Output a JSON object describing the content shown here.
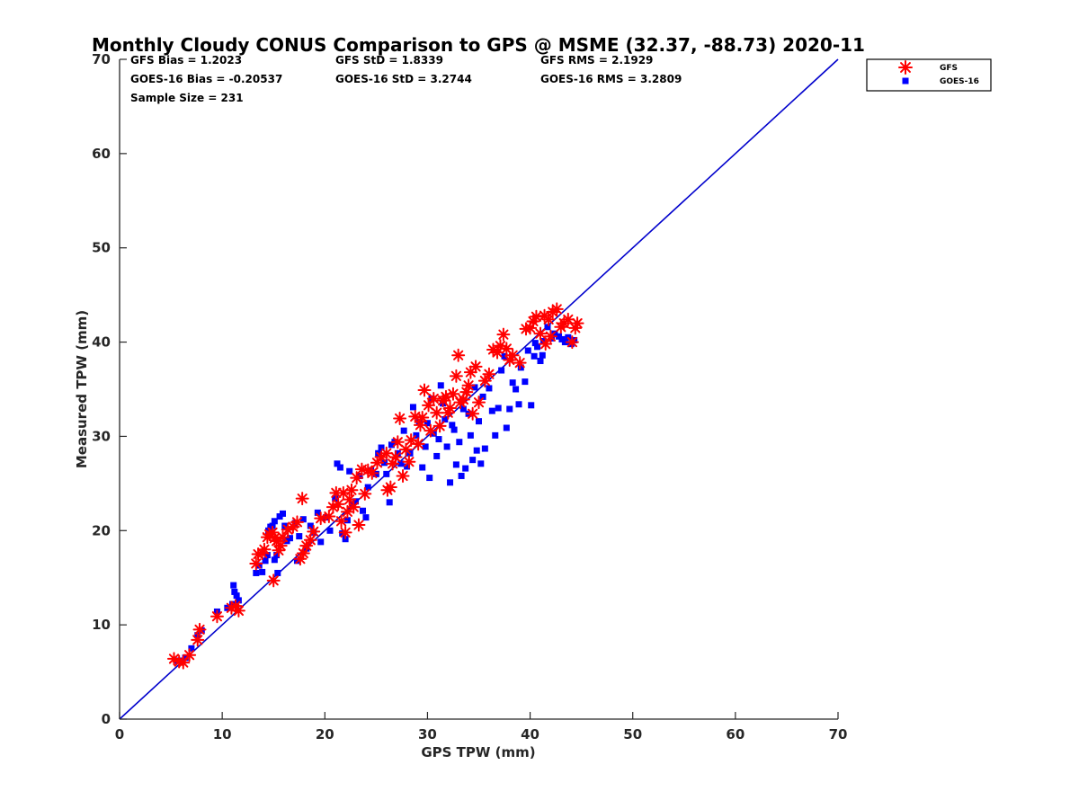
{
  "chart_data": {
    "type": "scatter",
    "title": "Monthly Cloudy CONUS Comparison to GPS @ MSME (32.37, -88.73) 2020-11",
    "xlabel": "GPS TPW (mm)",
    "ylabel": "Measured TPW (mm)",
    "xlim": [
      0,
      70
    ],
    "ylim": [
      0,
      70
    ],
    "xticks": [
      "0",
      "10",
      "20",
      "30",
      "40",
      "50",
      "60",
      "70"
    ],
    "yticks": [
      "0",
      "10",
      "20",
      "30",
      "40",
      "50",
      "60",
      "70"
    ],
    "grid": false,
    "legend_position": "top-right, outside plot area",
    "reference_line": {
      "from": [
        0,
        0
      ],
      "to": [
        70,
        70
      ],
      "color": "#0000CC"
    },
    "stats": {
      "gfs_bias": "GFS Bias = 1.2023",
      "gfs_std": "GFS StD = 1.8339",
      "gfs_rms": "GFS RMS = 2.1929",
      "goes_bias": "GOES-16 Bias = -0.20537",
      "goes_std": "GOES-16 StD = 3.2744",
      "goes_rms": "GOES-16 RMS = 3.2809",
      "sample_size": "Sample Size = 231"
    },
    "series": [
      {
        "name": "GFS",
        "marker": "asterisk",
        "color": "#FF0000",
        "points": [
          [
            5.3,
            6.4
          ],
          [
            5.8,
            6.1
          ],
          [
            6.2,
            6.0
          ],
          [
            6.8,
            6.8
          ],
          [
            7.6,
            8.4
          ],
          [
            7.8,
            9.5
          ],
          [
            9.5,
            10.9
          ],
          [
            10.9,
            11.8
          ],
          [
            11.3,
            12.0
          ],
          [
            11.6,
            11.5
          ],
          [
            13.3,
            16.5
          ],
          [
            13.5,
            17.5
          ],
          [
            13.9,
            17.6
          ],
          [
            14.1,
            18.0
          ],
          [
            14.4,
            19.3
          ],
          [
            14.6,
            19.6
          ],
          [
            14.9,
            19.8
          ],
          [
            15.1,
            19.2
          ],
          [
            15.3,
            18.9
          ],
          [
            15.5,
            17.9
          ],
          [
            15.7,
            18.4
          ],
          [
            15.9,
            19.3
          ],
          [
            15.0,
            14.7
          ],
          [
            16.4,
            20.1
          ],
          [
            16.9,
            20.4
          ],
          [
            17.3,
            20.9
          ],
          [
            17.8,
            23.4
          ],
          [
            17.6,
            17.0
          ],
          [
            17.9,
            17.6
          ],
          [
            18.2,
            18.4
          ],
          [
            18.6,
            19.0
          ],
          [
            18.9,
            19.9
          ],
          [
            19.6,
            21.3
          ],
          [
            20.4,
            21.5
          ],
          [
            20.8,
            22.5
          ],
          [
            21.1,
            24.0
          ],
          [
            21.3,
            22.8
          ],
          [
            21.6,
            21.0
          ],
          [
            21.8,
            24.0
          ],
          [
            22.0,
            19.8
          ],
          [
            22.2,
            22.0
          ],
          [
            22.4,
            23.3
          ],
          [
            22.6,
            24.3
          ],
          [
            22.8,
            22.5
          ],
          [
            23.1,
            25.6
          ],
          [
            23.3,
            20.6
          ],
          [
            23.6,
            26.5
          ],
          [
            23.9,
            23.9
          ],
          [
            24.2,
            26.4
          ],
          [
            24.6,
            26.1
          ],
          [
            25.1,
            27.2
          ],
          [
            25.5,
            27.8
          ],
          [
            26.0,
            28.2
          ],
          [
            26.4,
            24.6
          ],
          [
            26.1,
            24.3
          ],
          [
            26.6,
            27.1
          ],
          [
            26.9,
            27.8
          ],
          [
            27.1,
            29.4
          ],
          [
            27.3,
            31.9
          ],
          [
            27.6,
            25.8
          ],
          [
            27.9,
            28.6
          ],
          [
            28.2,
            27.3
          ],
          [
            28.4,
            29.6
          ],
          [
            28.8,
            32.1
          ],
          [
            29.1,
            29.2
          ],
          [
            29.3,
            31.2
          ],
          [
            29.5,
            32.0
          ],
          [
            29.7,
            34.9
          ],
          [
            30.1,
            33.3
          ],
          [
            30.3,
            30.6
          ],
          [
            30.6,
            34.0
          ],
          [
            30.9,
            32.5
          ],
          [
            31.2,
            31.1
          ],
          [
            31.5,
            33.8
          ],
          [
            31.8,
            34.2
          ],
          [
            32.0,
            32.5
          ],
          [
            32.2,
            33.0
          ],
          [
            32.5,
            34.5
          ],
          [
            32.8,
            36.4
          ],
          [
            33.0,
            38.6
          ],
          [
            33.2,
            33.6
          ],
          [
            33.5,
            33.9
          ],
          [
            33.8,
            34.7
          ],
          [
            34.0,
            35.4
          ],
          [
            34.2,
            36.8
          ],
          [
            34.4,
            32.4
          ],
          [
            34.7,
            37.4
          ],
          [
            35.0,
            33.6
          ],
          [
            35.6,
            35.9
          ],
          [
            36.0,
            36.6
          ],
          [
            36.4,
            39.2
          ],
          [
            36.8,
            38.9
          ],
          [
            37.1,
            39.6
          ],
          [
            37.4,
            40.8
          ],
          [
            37.7,
            39.3
          ],
          [
            38.0,
            38.1
          ],
          [
            38.3,
            38.6
          ],
          [
            39.0,
            37.8
          ],
          [
            39.6,
            41.4
          ],
          [
            40.0,
            41.5
          ],
          [
            40.3,
            42.2
          ],
          [
            40.6,
            42.7
          ],
          [
            41.0,
            40.9
          ],
          [
            41.4,
            42.8
          ],
          [
            41.8,
            42.4
          ],
          [
            42.2,
            43.2
          ],
          [
            42.6,
            43.5
          ],
          [
            43.0,
            41.6
          ],
          [
            43.3,
            42.0
          ],
          [
            43.7,
            42.4
          ],
          [
            44.1,
            40.0
          ],
          [
            44.4,
            41.5
          ],
          [
            44.6,
            42.0
          ],
          [
            42.0,
            40.6
          ],
          [
            41.5,
            39.8
          ]
        ]
      },
      {
        "name": "GOES-16",
        "marker": "square",
        "color": "#0000FF",
        "points": [
          [
            5.6,
            6.2
          ],
          [
            6.1,
            6.2
          ],
          [
            6.4,
            6.5
          ],
          [
            7.0,
            7.5
          ],
          [
            7.6,
            8.9
          ],
          [
            8.0,
            9.4
          ],
          [
            9.5,
            11.4
          ],
          [
            10.5,
            11.8
          ],
          [
            11.0,
            12.2
          ],
          [
            11.1,
            14.2
          ],
          [
            11.2,
            13.5
          ],
          [
            11.4,
            13.1
          ],
          [
            11.6,
            12.6
          ],
          [
            13.3,
            15.5
          ],
          [
            13.6,
            16.3
          ],
          [
            13.9,
            15.6
          ],
          [
            14.2,
            16.8
          ],
          [
            14.4,
            17.4
          ],
          [
            14.5,
            20.0
          ],
          [
            14.7,
            20.4
          ],
          [
            14.9,
            20.5
          ],
          [
            15.1,
            21.0
          ],
          [
            15.3,
            17.4
          ],
          [
            15.6,
            21.5
          ],
          [
            15.9,
            21.8
          ],
          [
            15.1,
            16.9
          ],
          [
            15.4,
            15.5
          ],
          [
            16.1,
            20.5
          ],
          [
            16.3,
            18.9
          ],
          [
            16.6,
            19.2
          ],
          [
            17.1,
            20.8
          ],
          [
            17.3,
            16.8
          ],
          [
            17.5,
            19.4
          ],
          [
            17.9,
            21.2
          ],
          [
            18.2,
            18.1
          ],
          [
            18.6,
            20.5
          ],
          [
            18.9,
            19.8
          ],
          [
            19.3,
            21.9
          ],
          [
            19.6,
            18.8
          ],
          [
            20.1,
            21.4
          ],
          [
            20.5,
            20.0
          ],
          [
            21.0,
            23.4
          ],
          [
            21.2,
            27.1
          ],
          [
            21.5,
            26.7
          ],
          [
            21.7,
            19.7
          ],
          [
            22.0,
            19.1
          ],
          [
            22.2,
            21.1
          ],
          [
            22.4,
            26.3
          ],
          [
            22.7,
            22.8
          ],
          [
            23.0,
            23.1
          ],
          [
            23.4,
            25.8
          ],
          [
            23.7,
            22.1
          ],
          [
            24.0,
            21.4
          ],
          [
            24.2,
            24.6
          ],
          [
            24.5,
            26.4
          ],
          [
            25.0,
            26.0
          ],
          [
            25.2,
            28.2
          ],
          [
            25.5,
            28.8
          ],
          [
            25.8,
            27.2
          ],
          [
            26.0,
            26.0
          ],
          [
            26.3,
            23.0
          ],
          [
            26.5,
            29.1
          ],
          [
            26.8,
            29.4
          ],
          [
            27.1,
            28.2
          ],
          [
            27.4,
            27.1
          ],
          [
            27.7,
            30.6
          ],
          [
            28.0,
            26.8
          ],
          [
            28.3,
            28.2
          ],
          [
            28.6,
            33.1
          ],
          [
            28.9,
            30.1
          ],
          [
            29.2,
            31.5
          ],
          [
            29.5,
            26.7
          ],
          [
            29.8,
            28.9
          ],
          [
            30.0,
            31.4
          ],
          [
            30.2,
            25.6
          ],
          [
            30.4,
            34.0
          ],
          [
            30.6,
            30.3
          ],
          [
            30.9,
            27.9
          ],
          [
            31.1,
            29.7
          ],
          [
            31.3,
            35.4
          ],
          [
            31.5,
            33.5
          ],
          [
            31.7,
            31.8
          ],
          [
            31.9,
            28.9
          ],
          [
            32.2,
            25.1
          ],
          [
            32.4,
            31.2
          ],
          [
            32.6,
            30.7
          ],
          [
            32.8,
            27.0
          ],
          [
            33.1,
            29.4
          ],
          [
            33.3,
            25.8
          ],
          [
            33.5,
            32.9
          ],
          [
            33.7,
            26.6
          ],
          [
            34.0,
            32.4
          ],
          [
            34.2,
            30.1
          ],
          [
            34.4,
            27.5
          ],
          [
            34.6,
            35.2
          ],
          [
            34.8,
            28.5
          ],
          [
            35.0,
            31.6
          ],
          [
            35.2,
            27.1
          ],
          [
            35.4,
            34.2
          ],
          [
            35.6,
            28.7
          ],
          [
            36.0,
            35.1
          ],
          [
            36.3,
            32.7
          ],
          [
            36.6,
            30.1
          ],
          [
            36.9,
            33.0
          ],
          [
            37.2,
            37.0
          ],
          [
            37.5,
            38.5
          ],
          [
            37.7,
            30.9
          ],
          [
            38.0,
            32.9
          ],
          [
            38.3,
            35.7
          ],
          [
            38.6,
            35.0
          ],
          [
            38.9,
            33.4
          ],
          [
            39.1,
            37.3
          ],
          [
            39.5,
            35.8
          ],
          [
            39.8,
            39.1
          ],
          [
            40.1,
            33.3
          ],
          [
            40.4,
            38.5
          ],
          [
            40.7,
            39.5
          ],
          [
            41.0,
            38.0
          ],
          [
            41.3,
            40.1
          ],
          [
            41.7,
            41.6
          ],
          [
            42.1,
            40.4
          ],
          [
            42.4,
            40.9
          ],
          [
            42.8,
            40.6
          ],
          [
            43.1,
            40.3
          ],
          [
            43.4,
            40.0
          ],
          [
            43.7,
            40.5
          ],
          [
            44.0,
            39.8
          ],
          [
            44.3,
            40.2
          ],
          [
            41.2,
            38.6
          ],
          [
            40.5,
            39.9
          ]
        ]
      }
    ]
  }
}
